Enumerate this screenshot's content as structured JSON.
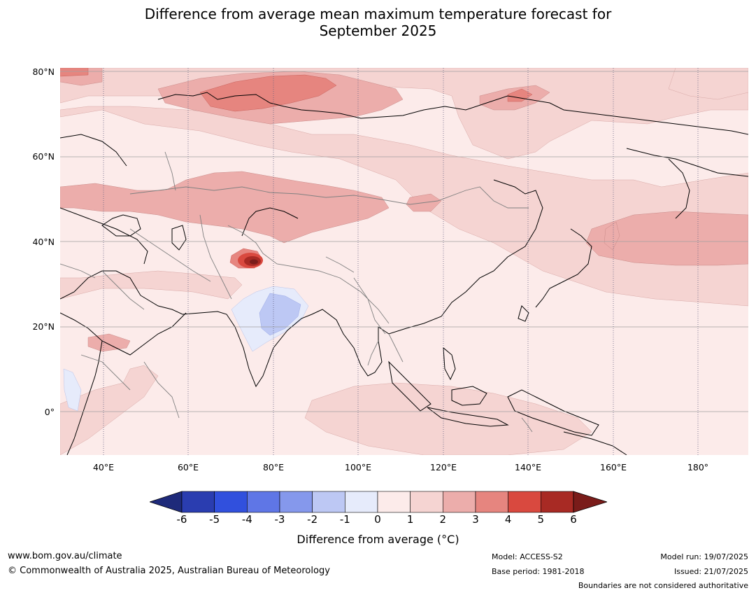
{
  "title_line1": "Difference from average mean maximum temperature forecast for",
  "title_line2": "September 2025",
  "map": {
    "lat_labels": [
      "80°N",
      "60°N",
      "40°N",
      "20°N",
      "0°"
    ],
    "lon_labels": [
      "40°E",
      "60°E",
      "80°E",
      "100°E",
      "120°E",
      "140°E",
      "160°E",
      "180°"
    ]
  },
  "legend": {
    "ticks": [
      "-6",
      "-5",
      "-4",
      "-3",
      "-2",
      "-1",
      "0",
      "1",
      "2",
      "3",
      "4",
      "5",
      "6"
    ],
    "colors": [
      "#1e2a7a",
      "#2a3db0",
      "#3150dd",
      "#5f76e6",
      "#8598ec",
      "#bdc8f4",
      "#e6ebfb",
      "#fcebea",
      "#f5d4d2",
      "#ecadab",
      "#e6857f",
      "#d9493f",
      "#a82a24",
      "#7a1c1a"
    ],
    "label": "Difference from average (°C)"
  },
  "footer": {
    "website": "www.bom.gov.au/climate",
    "copyright": "© Commonwealth of Australia 2025, Australian Bureau of Meteorology",
    "model": "Model: ACCESS-S2",
    "base_period": "Base period: 1981-2018",
    "model_run": "Model run: 19/07/2025",
    "issued": "Issued: 21/07/2025",
    "disclaimer": "Boundaries are not considered authoritative"
  }
}
